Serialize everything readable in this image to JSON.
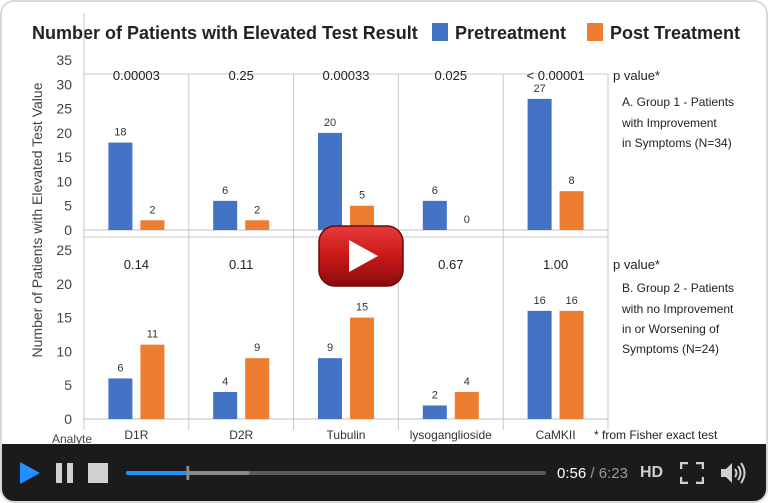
{
  "chart_data": {
    "type": "bar",
    "title": "Number of Patients with Elevated Test Result",
    "ylabel": "Number of Patients with Elevated Test Value",
    "x_axis_header": "Analyte",
    "categories": [
      "D1R",
      "D2R",
      "Tubulin",
      "lysoganglioside",
      "CaMKII"
    ],
    "legend": [
      {
        "name": "Pretreatment",
        "color": "#4472c4"
      },
      {
        "name": "Post Treatment",
        "color": "#ed7d31"
      }
    ],
    "legend_position": "top",
    "panels": [
      {
        "id": "A",
        "ylim": [
          0,
          35
        ],
        "yticks": [
          "0",
          "5",
          "10",
          "15",
          "20",
          "25",
          "30",
          "35"
        ],
        "p_value_label": "p value*",
        "p_values": [
          "0.00003",
          "0.25",
          "0.00033",
          "0.025",
          "< 0.00001"
        ],
        "description": [
          "A. Group 1 - Patients",
          "with Improvement",
          "in Symptoms (N=34)"
        ],
        "series": [
          {
            "name": "Pretreatment",
            "values": [
              18,
              6,
              20,
              6,
              27
            ]
          },
          {
            "name": "Post Treatment",
            "values": [
              2,
              2,
              5,
              0,
              8
            ]
          }
        ]
      },
      {
        "id": "B",
        "ylim": [
          0,
          25
        ],
        "yticks": [
          "0",
          "5",
          "10",
          "15",
          "20",
          "25"
        ],
        "p_value_label": "p value*",
        "p_values": [
          "0.14",
          "0.11",
          "",
          "0.67",
          "1.00"
        ],
        "description": [
          "B. Group 2 - Patients",
          "with no Improvement",
          "in or Worsening of",
          "Symptoms (N=24)"
        ],
        "series": [
          {
            "name": "Pretreatment",
            "values": [
              6,
              4,
              9,
              2,
              16
            ]
          },
          {
            "name": "Post Treatment",
            "values": [
              11,
              9,
              15,
              4,
              16
            ]
          }
        ]
      }
    ],
    "footnote": "* from Fisher exact test",
    "grid": "vertical separators only"
  },
  "player": {
    "current_time": "0:56",
    "separator": "/",
    "duration": "6:23",
    "hd_label": "HD",
    "progress_played": 0.146,
    "progress_buffered": 0.294,
    "volume": 1.0,
    "icons": [
      "play-icon",
      "pause-icon",
      "stop-icon",
      "fullscreen-icon",
      "volume-icon",
      "play-overlay-icon"
    ],
    "accent_color": "#1e90ff",
    "overlay_color": "#cc1a1a"
  }
}
